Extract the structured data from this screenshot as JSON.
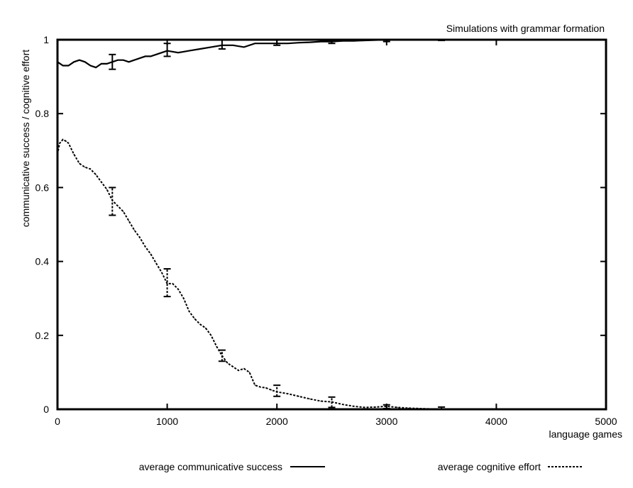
{
  "chart_data": {
    "type": "line",
    "title": "Simulations with grammar formation",
    "xlabel": "language games",
    "ylabel": "communicative success / cognitive effort",
    "xlim": [
      0,
      5000
    ],
    "ylim": [
      0,
      1
    ],
    "xticks": [
      0,
      1000,
      2000,
      3000,
      4000,
      5000
    ],
    "yticks": [
      0,
      0.2,
      0.4,
      0.6,
      0.8,
      1
    ],
    "xtick_labels": [
      "0",
      "1000",
      "2000",
      "3000",
      "4000",
      "5000"
    ],
    "ytick_labels": [
      "0",
      "0.2",
      "0.4",
      "0.6",
      "0.8",
      "1"
    ],
    "grid": false,
    "legend_position": "bottom",
    "series": [
      {
        "name": "average communicative success",
        "style": "solid",
        "color": "#000000",
        "points": [
          [
            0,
            0.94
          ],
          [
            50,
            0.93
          ],
          [
            100,
            0.93
          ],
          [
            150,
            0.94
          ],
          [
            200,
            0.945
          ],
          [
            250,
            0.94
          ],
          [
            300,
            0.93
          ],
          [
            350,
            0.925
          ],
          [
            400,
            0.935
          ],
          [
            450,
            0.935
          ],
          [
            500,
            0.94
          ],
          [
            550,
            0.945
          ],
          [
            600,
            0.945
          ],
          [
            650,
            0.94
          ],
          [
            700,
            0.945
          ],
          [
            750,
            0.95
          ],
          [
            800,
            0.955
          ],
          [
            850,
            0.955
          ],
          [
            900,
            0.96
          ],
          [
            950,
            0.965
          ],
          [
            1000,
            0.97
          ],
          [
            1100,
            0.965
          ],
          [
            1200,
            0.97
          ],
          [
            1300,
            0.975
          ],
          [
            1400,
            0.98
          ],
          [
            1500,
            0.985
          ],
          [
            1600,
            0.985
          ],
          [
            1700,
            0.98
          ],
          [
            1800,
            0.99
          ],
          [
            1900,
            0.99
          ],
          [
            2000,
            0.99
          ],
          [
            2100,
            0.99
          ],
          [
            2200,
            0.992
          ],
          [
            2300,
            0.993
          ],
          [
            2400,
            0.995
          ],
          [
            2500,
            0.995
          ],
          [
            2600,
            0.997
          ],
          [
            2700,
            0.997
          ],
          [
            2800,
            0.998
          ],
          [
            2900,
            0.999
          ],
          [
            3000,
            1.0
          ],
          [
            3200,
            1.0
          ],
          [
            3400,
            1.0
          ],
          [
            3600,
            1.0
          ],
          [
            3800,
            1.0
          ],
          [
            4000,
            1.0
          ],
          [
            4200,
            1.0
          ],
          [
            4400,
            1.0
          ],
          [
            4600,
            1.0
          ],
          [
            4800,
            1.0
          ],
          [
            5000,
            1.0
          ]
        ],
        "error_bars": [
          [
            500,
            0.92,
            0.96
          ],
          [
            1000,
            0.955,
            0.99
          ],
          [
            1500,
            0.975,
            1.0
          ],
          [
            2000,
            0.985,
            1.0
          ],
          [
            2500,
            0.99,
            1.0
          ],
          [
            3000,
            0.995,
            1.0
          ],
          [
            3500,
            0.998,
            1.0
          ]
        ]
      },
      {
        "name": "average cognitive effort",
        "style": "dashed",
        "color": "#000000",
        "points": [
          [
            0,
            0.69
          ],
          [
            20,
            0.72
          ],
          [
            50,
            0.73
          ],
          [
            80,
            0.725
          ],
          [
            100,
            0.72
          ],
          [
            150,
            0.69
          ],
          [
            200,
            0.665
          ],
          [
            250,
            0.655
          ],
          [
            300,
            0.65
          ],
          [
            350,
            0.635
          ],
          [
            400,
            0.615
          ],
          [
            450,
            0.595
          ],
          [
            500,
            0.565
          ],
          [
            550,
            0.55
          ],
          [
            600,
            0.535
          ],
          [
            650,
            0.51
          ],
          [
            700,
            0.485
          ],
          [
            750,
            0.465
          ],
          [
            800,
            0.44
          ],
          [
            850,
            0.42
          ],
          [
            900,
            0.395
          ],
          [
            950,
            0.37
          ],
          [
            1000,
            0.34
          ],
          [
            1050,
            0.34
          ],
          [
            1100,
            0.325
          ],
          [
            1150,
            0.3
          ],
          [
            1200,
            0.265
          ],
          [
            1250,
            0.245
          ],
          [
            1300,
            0.23
          ],
          [
            1350,
            0.22
          ],
          [
            1400,
            0.2
          ],
          [
            1450,
            0.17
          ],
          [
            1500,
            0.145
          ],
          [
            1550,
            0.125
          ],
          [
            1600,
            0.115
          ],
          [
            1650,
            0.105
          ],
          [
            1700,
            0.11
          ],
          [
            1750,
            0.1
          ],
          [
            1800,
            0.065
          ],
          [
            1850,
            0.06
          ],
          [
            1900,
            0.058
          ],
          [
            1950,
            0.052
          ],
          [
            2000,
            0.047
          ],
          [
            2100,
            0.042
          ],
          [
            2200,
            0.035
          ],
          [
            2300,
            0.028
          ],
          [
            2400,
            0.022
          ],
          [
            2500,
            0.02
          ],
          [
            2600,
            0.013
          ],
          [
            2700,
            0.008
          ],
          [
            2800,
            0.005
          ],
          [
            2900,
            0.006
          ],
          [
            3000,
            0.008
          ],
          [
            3100,
            0.005
          ],
          [
            3200,
            0.003
          ],
          [
            3300,
            0.002
          ],
          [
            3400,
            0.001
          ],
          [
            3500,
            0.001
          ],
          [
            3600,
            0.0
          ],
          [
            3700,
            0.0
          ],
          [
            3800,
            0.0
          ]
        ],
        "error_bars": [
          [
            500,
            0.525,
            0.6
          ],
          [
            1000,
            0.305,
            0.38
          ],
          [
            1500,
            0.13,
            0.16
          ],
          [
            2000,
            0.035,
            0.065
          ],
          [
            2500,
            0.005,
            0.033
          ],
          [
            3000,
            0.002,
            0.012
          ],
          [
            3500,
            0.0,
            0.006
          ]
        ]
      }
    ]
  }
}
